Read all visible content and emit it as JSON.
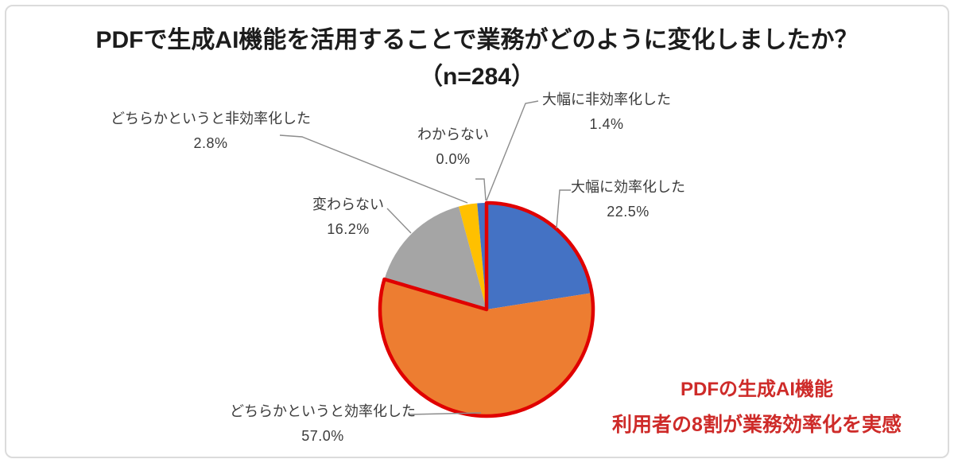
{
  "title": {
    "line1": "PDFで生成AI機能を活用することで業務がどのように変化しましたか？",
    "line2": "（n=284）"
  },
  "chart_data": {
    "type": "pie",
    "title": "PDFで生成AI機能を活用することで業務がどのように変化しましたか？",
    "sample_size_label": "（n=284）",
    "n": 284,
    "start_angle_deg": 0,
    "direction": "clockwise",
    "legend": "none",
    "slices": [
      {
        "label": "大幅に効率化した",
        "value": 22.5,
        "display": "22.5%",
        "color": "#4472C4"
      },
      {
        "label": "どちらかというと効率化した",
        "value": 57.0,
        "display": "57.0%",
        "color": "#ED7D31"
      },
      {
        "label": "変わらない",
        "value": 16.2,
        "display": "16.2%",
        "color": "#A5A5A5"
      },
      {
        "label": "どちらかというと非効率化した",
        "value": 2.8,
        "display": "2.8%",
        "color": "#FFC000"
      },
      {
        "label": "大幅に非効率化した",
        "value": 1.4,
        "display": "1.4%",
        "color": "#4472C4"
      },
      {
        "label": "わからない",
        "value": 0.0,
        "display": "0.0%",
        "color": null
      }
    ],
    "highlight": {
      "slice_indices": [
        0,
        1
      ],
      "color": "#E00000"
    },
    "leader_line_color": "#8C8C8C"
  },
  "annotation": {
    "line1": "PDFの生成AI機能",
    "line2": "利用者の8割が業務効率化を実感",
    "color": "#CE2B29"
  }
}
